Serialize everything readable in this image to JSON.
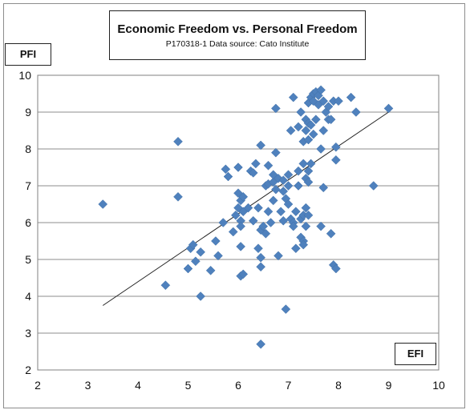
{
  "chart_data": {
    "type": "scatter",
    "title": "Economic Freedom vs. Personal Freedom",
    "subtitle": "P170318-1 Data source: Cato Institute",
    "xlabel": "EFI",
    "ylabel": "PFI",
    "xlim": [
      2,
      10
    ],
    "ylim": [
      2,
      10
    ],
    "xticks": [
      "2",
      "3",
      "4",
      "5",
      "6",
      "7",
      "8",
      "9",
      "10"
    ],
    "yticks": [
      "2",
      "3",
      "4",
      "5",
      "6",
      "7",
      "8",
      "9",
      "10"
    ],
    "grid": "horizontal",
    "legend": "none",
    "marker_color": "#4f81bd",
    "trendline": {
      "x": [
        3.3,
        9.0
      ],
      "y": [
        3.75,
        9.0
      ]
    },
    "points": [
      [
        3.3,
        6.5
      ],
      [
        4.55,
        4.3
      ],
      [
        4.8,
        8.2
      ],
      [
        4.8,
        6.7
      ],
      [
        5.0,
        4.75
      ],
      [
        5.05,
        5.3
      ],
      [
        5.1,
        5.4
      ],
      [
        5.15,
        4.95
      ],
      [
        5.25,
        5.2
      ],
      [
        5.25,
        4.0
      ],
      [
        5.45,
        4.7
      ],
      [
        5.55,
        5.5
      ],
      [
        5.6,
        5.1
      ],
      [
        5.7,
        6.0
      ],
      [
        5.75,
        7.45
      ],
      [
        5.8,
        7.25
      ],
      [
        5.9,
        5.75
      ],
      [
        5.95,
        6.2
      ],
      [
        6.0,
        6.4
      ],
      [
        6.0,
        6.8
      ],
      [
        6.0,
        7.5
      ],
      [
        6.05,
        6.6
      ],
      [
        6.05,
        6.05
      ],
      [
        6.05,
        5.9
      ],
      [
        6.05,
        5.35
      ],
      [
        6.05,
        4.55
      ],
      [
        6.1,
        6.3
      ],
      [
        6.1,
        6.7
      ],
      [
        6.1,
        4.6
      ],
      [
        6.2,
        6.4
      ],
      [
        6.25,
        7.4
      ],
      [
        6.3,
        7.35
      ],
      [
        6.3,
        6.05
      ],
      [
        6.35,
        7.6
      ],
      [
        6.4,
        5.3
      ],
      [
        6.4,
        6.4
      ],
      [
        6.45,
        8.1
      ],
      [
        6.45,
        5.8
      ],
      [
        6.45,
        5.05
      ],
      [
        6.45,
        4.8
      ],
      [
        6.45,
        2.7
      ],
      [
        6.5,
        5.9
      ],
      [
        6.55,
        7.0
      ],
      [
        6.55,
        5.7
      ],
      [
        6.6,
        7.05
      ],
      [
        6.6,
        6.3
      ],
      [
        6.6,
        7.55
      ],
      [
        6.65,
        6.0
      ],
      [
        6.7,
        7.1
      ],
      [
        6.7,
        7.3
      ],
      [
        6.7,
        6.6
      ],
      [
        6.75,
        9.1
      ],
      [
        6.75,
        7.9
      ],
      [
        6.75,
        6.9
      ],
      [
        6.8,
        7.2
      ],
      [
        6.8,
        5.1
      ],
      [
        6.85,
        6.3
      ],
      [
        6.9,
        7.15
      ],
      [
        6.9,
        6.85
      ],
      [
        6.9,
        6.05
      ],
      [
        6.95,
        6.65
      ],
      [
        6.95,
        3.65
      ],
      [
        7.0,
        6.5
      ],
      [
        7.0,
        7.0
      ],
      [
        7.0,
        7.3
      ],
      [
        7.05,
        8.5
      ],
      [
        7.05,
        6.1
      ],
      [
        7.1,
        6.0
      ],
      [
        7.1,
        5.9
      ],
      [
        7.1,
        9.4
      ],
      [
        7.15,
        5.3
      ],
      [
        7.15,
        6.3
      ],
      [
        7.2,
        7.4
      ],
      [
        7.2,
        7.0
      ],
      [
        7.2,
        8.6
      ],
      [
        7.25,
        5.6
      ],
      [
        7.25,
        6.1
      ],
      [
        7.25,
        9.0
      ],
      [
        7.3,
        8.2
      ],
      [
        7.3,
        7.6
      ],
      [
        7.3,
        6.2
      ],
      [
        7.3,
        5.5
      ],
      [
        7.3,
        5.4
      ],
      [
        7.35,
        8.8
      ],
      [
        7.35,
        8.5
      ],
      [
        7.35,
        7.2
      ],
      [
        7.35,
        6.4
      ],
      [
        7.35,
        5.9
      ],
      [
        7.4,
        9.25
      ],
      [
        7.4,
        8.7
      ],
      [
        7.4,
        8.25
      ],
      [
        7.4,
        7.4
      ],
      [
        7.4,
        7.1
      ],
      [
        7.4,
        6.2
      ],
      [
        7.45,
        9.4
      ],
      [
        7.45,
        8.65
      ],
      [
        7.45,
        7.6
      ],
      [
        7.5,
        9.5
      ],
      [
        7.5,
        9.3
      ],
      [
        7.5,
        8.4
      ],
      [
        7.55,
        9.55
      ],
      [
        7.55,
        8.8
      ],
      [
        7.6,
        9.2
      ],
      [
        7.6,
        9.45
      ],
      [
        7.65,
        9.6
      ],
      [
        7.65,
        8.0
      ],
      [
        7.65,
        5.9
      ],
      [
        7.7,
        9.3
      ],
      [
        7.7,
        8.5
      ],
      [
        7.7,
        6.95
      ],
      [
        7.75,
        9.0
      ],
      [
        7.8,
        9.15
      ],
      [
        7.8,
        8.8
      ],
      [
        7.85,
        5.7
      ],
      [
        7.85,
        8.8
      ],
      [
        7.9,
        9.3
      ],
      [
        7.9,
        4.85
      ],
      [
        7.95,
        8.05
      ],
      [
        7.95,
        7.7
      ],
      [
        7.95,
        4.75
      ],
      [
        8.0,
        9.3
      ],
      [
        8.25,
        9.4
      ],
      [
        8.35,
        9.0
      ],
      [
        8.7,
        7.0
      ],
      [
        9.0,
        9.1
      ]
    ]
  }
}
